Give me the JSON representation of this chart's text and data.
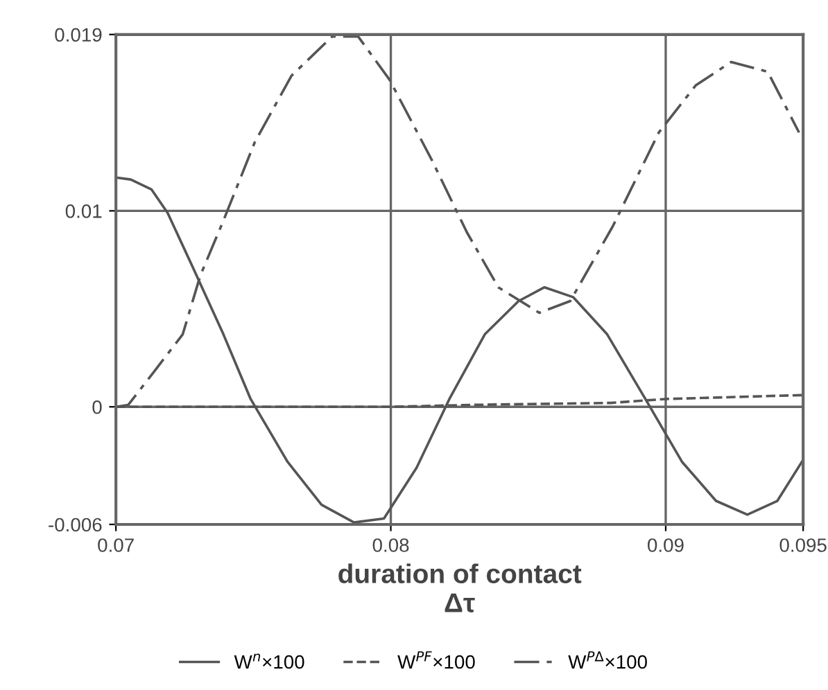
{
  "chart_data": {
    "type": "line",
    "xlabel": "duration of contact\nΔτ",
    "xlim": [
      0.07,
      0.095
    ],
    "xticks": [
      0.07,
      0.08,
      0.09,
      0.095
    ],
    "ylim": [
      -0.006,
      0.019
    ],
    "yticks": [
      -0.006,
      0,
      0.01,
      0.019
    ],
    "grid": true,
    "legend": "bottom",
    "series": [
      {
        "name": "W$^{n}$×100",
        "color": "#555555",
        "line_style": "solid",
        "x": [
          0.07,
          0.07054,
          0.07129,
          0.07188,
          0.07277,
          0.07391,
          0.0749,
          0.07624,
          0.07748,
          0.07866,
          0.07975,
          0.08094,
          0.08213,
          0.08342,
          0.08465,
          0.08559,
          0.08663,
          0.08787,
          0.08926,
          0.09059,
          0.09183,
          0.09297,
          0.09406,
          0.095
        ],
        "values": [
          0.0117,
          0.0116,
          0.0111,
          0.0099,
          0.0072,
          0.0037,
          0.0004,
          -0.0028,
          -0.005,
          -0.0059,
          -0.0057,
          -0.0031,
          0.0004,
          0.0037,
          0.0054,
          0.0061,
          0.0056,
          0.0037,
          0.0004,
          -0.0028,
          -0.0048,
          -0.0055,
          -0.0048,
          -0.0027
        ]
      },
      {
        "name": "W$^{PF}$×100",
        "color": "#555555",
        "line_style": "dashed",
        "x": [
          0.07,
          0.08,
          0.083,
          0.088,
          0.09,
          0.095
        ],
        "values": [
          0,
          0,
          0.0001,
          0.0002,
          0.0004,
          0.0006
        ]
      },
      {
        "name": "W$^{PΔ}$×100",
        "color": "#555555",
        "line_style": "dashdot",
        "x": [
          0.07,
          0.07045,
          0.07139,
          0.07243,
          0.07307,
          0.07391,
          0.07505,
          0.07639,
          0.07787,
          0.07881,
          0.07995,
          0.08149,
          0.08277,
          0.08391,
          0.0854,
          0.08653,
          0.08807,
          0.08975,
          0.09109,
          0.09238,
          0.09371,
          0.09485
        ],
        "values": [
          0,
          0.0001,
          0.0018,
          0.0037,
          0.0067,
          0.0095,
          0.0135,
          0.0169,
          0.0189,
          0.0189,
          0.0167,
          0.0126,
          0.0089,
          0.0061,
          0.0048,
          0.0054,
          0.0092,
          0.014,
          0.0164,
          0.0176,
          0.0171,
          0.014
        ]
      }
    ]
  }
}
